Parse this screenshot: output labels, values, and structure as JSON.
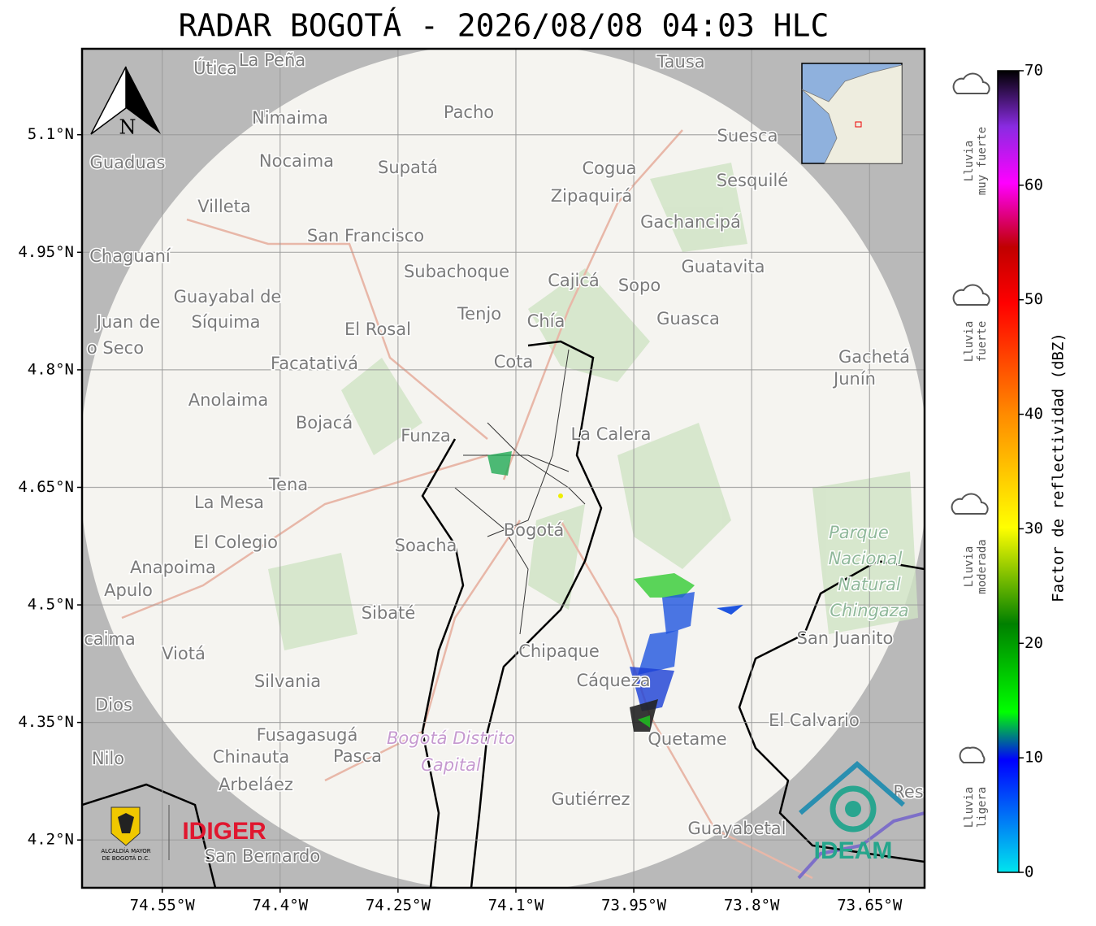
{
  "title": "RADAR BOGOTÁ - 2026/08/08 04:03 HLC",
  "map": {
    "xlim": [
      -74.652,
      -73.58
    ],
    "ylim": [
      4.139,
      5.2097
    ],
    "xticks": [
      {
        "value": -74.55,
        "label": "74.55°W"
      },
      {
        "value": -74.4,
        "label": "74.4°W"
      },
      {
        "value": -74.25,
        "label": "74.25°W"
      },
      {
        "value": -74.1,
        "label": "74.1°W"
      },
      {
        "value": -73.95,
        "label": "73.95°W"
      },
      {
        "value": -73.8,
        "label": "73.8°W"
      },
      {
        "value": -73.65,
        "label": "73.65°W"
      }
    ],
    "yticks": [
      {
        "value": 5.1,
        "label": "5.1°N"
      },
      {
        "value": 4.95,
        "label": "4.95°N"
      },
      {
        "value": 4.8,
        "label": "4.8°N"
      },
      {
        "value": 4.65,
        "label": "4.65°N"
      },
      {
        "value": 4.5,
        "label": "4.5°N"
      },
      {
        "value": 4.35,
        "label": "4.35°N"
      },
      {
        "value": 4.2,
        "label": "4.2°N"
      }
    ],
    "north_label": "N",
    "places": [
      "Útica",
      "La Peña",
      "Tausa",
      "Pacho",
      "Nimaima",
      "Guaduas",
      "Nocaima",
      "Supatá",
      "Cogua",
      "Suesca",
      "Sesquilé",
      "Zipaquirá",
      "Villeta",
      "Gachancipá",
      "San Francisco",
      "Chaguaní",
      "Guatavita",
      "Subachoque",
      "Cajicá",
      "Sopo",
      "Guayabal de",
      "Síquima",
      "Tenjo",
      "Chía",
      "Guasca",
      "Juan de",
      "o Seco",
      "El Rosal",
      "Facatativá",
      "Cota",
      "Gachetá",
      "Junín",
      "Anolaima",
      "Bojacá",
      "Funza",
      "La Calera",
      "Tena",
      "La Mesa",
      "Soacha",
      "Bogotá",
      "El Colegio",
      "Anapoima",
      "Apulo",
      "Sibaté",
      "San Juanito",
      "caima",
      "Chipaque",
      "Viotá",
      "Cáqueza",
      "Silvania",
      "Dios",
      "El Calvario",
      "Quetame",
      "Fusagasugá",
      "Nilo",
      "Chinauta",
      "Pasca",
      "Arbeláez",
      "Gutiérrez",
      "Res",
      "Guayabetal",
      "San Bernardo"
    ],
    "park": [
      "Parque",
      "Nacional",
      "Natural",
      "Chingaza"
    ],
    "district": [
      "Bogotá Distrito",
      "Capital"
    ]
  },
  "logos": {
    "alcaldia": [
      "ALCALDÍA MAYOR",
      "DE BOGOTÁ D.C."
    ],
    "idiger": "IDIGER",
    "ideam": "IDEAM"
  },
  "colorbar": {
    "label": "Factor de reflectividad (dBZ)",
    "lim": [
      0,
      70
    ],
    "ticks": [
      0,
      10,
      20,
      30,
      40,
      50,
      60,
      70
    ],
    "categories": [
      [
        "Lluvia",
        "muy fuerte"
      ],
      [
        "Lluvia",
        "fuerte"
      ],
      [
        "Lluvia",
        "moderada"
      ],
      [
        "Lluvia",
        "ligera"
      ]
    ]
  }
}
